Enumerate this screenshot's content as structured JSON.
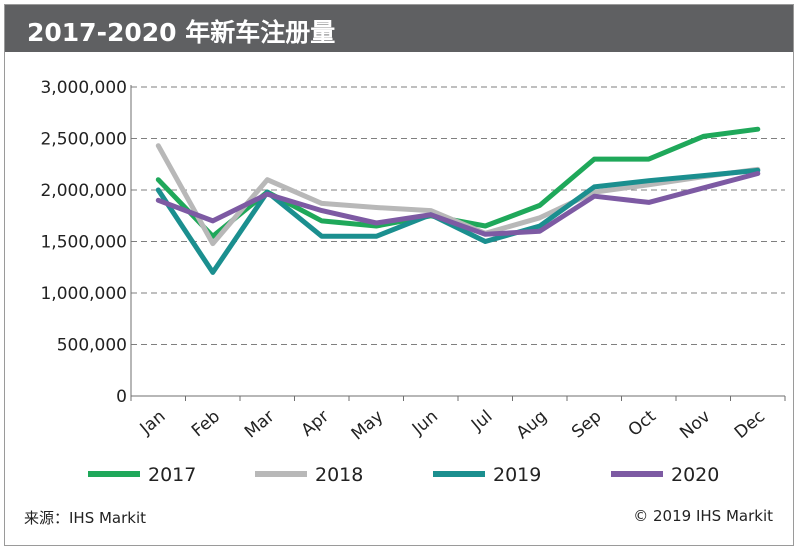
{
  "title": "2017-2020 年新车注册量",
  "source_text": "来源：IHS Markit",
  "copyright_text": "© 2019 IHS Markit",
  "chart_data": {
    "type": "line",
    "title": "2017-2020 年新车注册量",
    "xlabel": "",
    "ylabel": "",
    "categories": [
      "Jan",
      "Feb",
      "Mar",
      "Apr",
      "May",
      "Jun",
      "Jul",
      "Aug",
      "Sep",
      "Oct",
      "Nov",
      "Dec"
    ],
    "category_labels": [
      "Jan",
      "Feb",
      "Mar",
      "Apr",
      "May",
      "Jun",
      "Jul",
      "Aug",
      "Sep",
      "Oct",
      "Nov",
      "Dec"
    ],
    "ylim": [
      0,
      3000000
    ],
    "yticks": [
      0,
      500000,
      1000000,
      1500000,
      2000000,
      2500000,
      3000000
    ],
    "ytick_labels": [
      "0",
      "500,000",
      "1,000,000",
      "1,500,000",
      "2,000,000",
      "2,500,000",
      "3,000,000"
    ],
    "grid": "horizontal dashed",
    "legend_position": "bottom",
    "series": [
      {
        "name": "2017",
        "color": "#1fa85a",
        "values": [
          2100000,
          1550000,
          1980000,
          1700000,
          1650000,
          1750000,
          1650000,
          1850000,
          2300000,
          2300000,
          2520000,
          2590000
        ]
      },
      {
        "name": "2018",
        "color": "#b8b8b8",
        "values": [
          2430000,
          1480000,
          2100000,
          1870000,
          1830000,
          1800000,
          1580000,
          1730000,
          1980000,
          2050000,
          2130000,
          2200000
        ]
      },
      {
        "name": "2019",
        "color": "#1b8f8f",
        "values": [
          2000000,
          1200000,
          1980000,
          1550000,
          1550000,
          1760000,
          1500000,
          1650000,
          2030000,
          2090000,
          2140000,
          2190000
        ]
      },
      {
        "name": "2020",
        "color": "#7d5aa3",
        "values": [
          1900000,
          1700000,
          1960000,
          1800000,
          1680000,
          1760000,
          1570000,
          1600000,
          1940000,
          1880000,
          2020000,
          2160000
        ]
      }
    ]
  }
}
